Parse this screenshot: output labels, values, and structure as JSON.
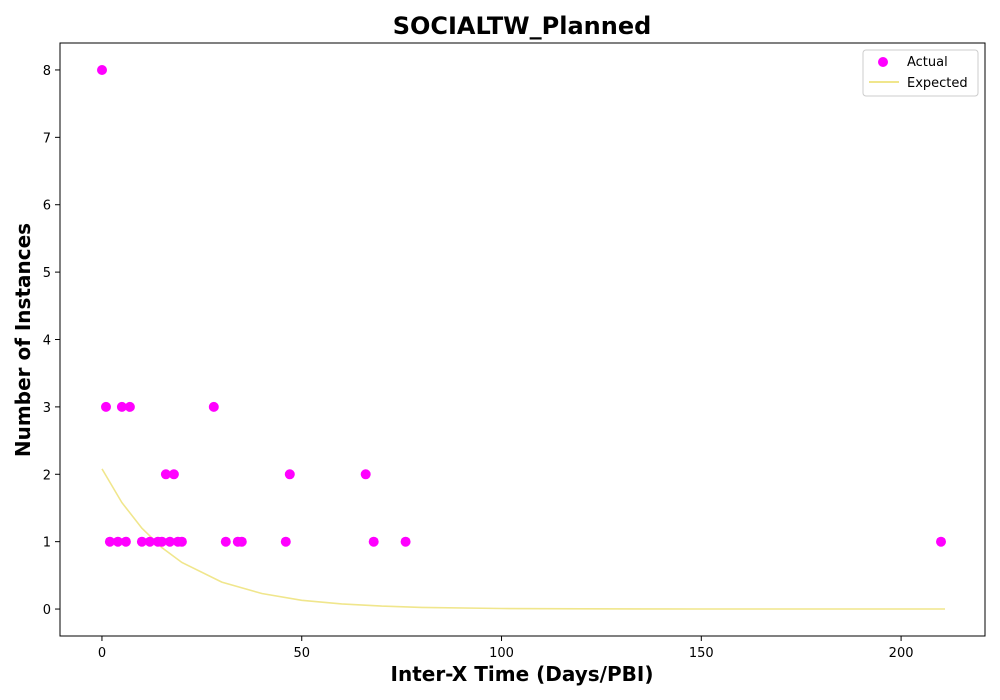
{
  "chart_data": {
    "type": "scatter",
    "title": "SOCIALTW_Planned",
    "xlabel": "Inter-X Time (Days/PBI)",
    "ylabel": "Number of Instances",
    "xlim": [
      -10.5,
      221
    ],
    "ylim": [
      -0.4,
      8.4
    ],
    "xticks": [
      0,
      50,
      100,
      150,
      200
    ],
    "yticks": [
      0,
      1,
      2,
      3,
      4,
      5,
      6,
      7,
      8
    ],
    "grid": false,
    "legend_position": "top-right",
    "series": [
      {
        "name": "Actual",
        "kind": "scatter",
        "color": "#ff00ff",
        "points": [
          [
            0,
            8
          ],
          [
            1,
            3
          ],
          [
            5,
            3
          ],
          [
            7,
            3
          ],
          [
            28,
            3
          ],
          [
            16,
            2
          ],
          [
            18,
            2
          ],
          [
            47,
            2
          ],
          [
            66,
            2
          ],
          [
            2,
            1
          ],
          [
            4,
            1
          ],
          [
            6,
            1
          ],
          [
            10,
            1
          ],
          [
            12,
            1
          ],
          [
            14,
            1
          ],
          [
            15,
            1
          ],
          [
            17,
            1
          ],
          [
            19,
            1
          ],
          [
            20,
            1
          ],
          [
            31,
            1
          ],
          [
            34,
            1
          ],
          [
            35,
            1
          ],
          [
            46,
            1
          ],
          [
            68,
            1
          ],
          [
            76,
            1
          ],
          [
            210,
            1
          ]
        ]
      },
      {
        "name": "Expected",
        "kind": "line",
        "color": "#f0e68c",
        "points": [
          [
            0,
            2.08
          ],
          [
            5,
            1.58
          ],
          [
            10,
            1.2
          ],
          [
            15,
            0.91
          ],
          [
            20,
            0.69
          ],
          [
            30,
            0.4
          ],
          [
            40,
            0.23
          ],
          [
            50,
            0.13
          ],
          [
            60,
            0.076
          ],
          [
            70,
            0.044
          ],
          [
            80,
            0.025
          ],
          [
            100,
            0.008
          ],
          [
            120,
            0.003
          ],
          [
            150,
            0.001
          ],
          [
            211,
            0.0
          ]
        ]
      }
    ]
  }
}
